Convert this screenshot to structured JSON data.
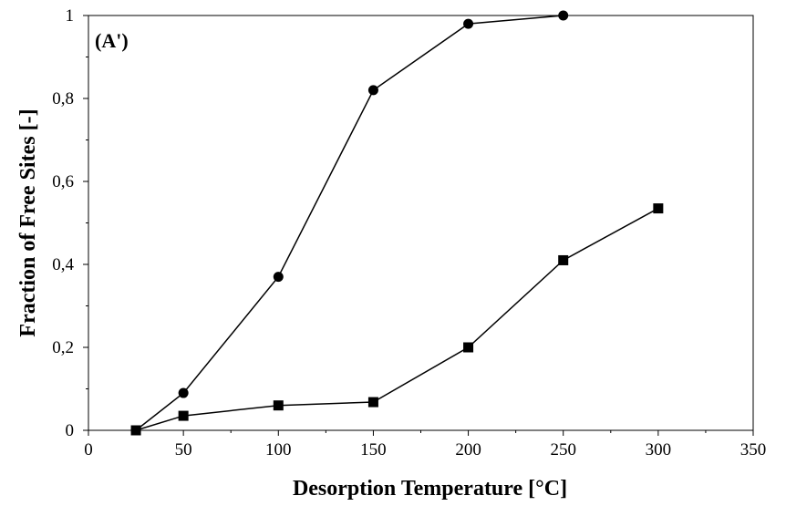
{
  "chart_data": {
    "type": "line",
    "panel_label": "(A')",
    "xlabel": "Desorption Temperature [°C]",
    "ylabel": "Fraction of Free Sites [-]",
    "xlim": [
      0,
      350
    ],
    "ylim": [
      0,
      1
    ],
    "x_ticks": [
      0,
      50,
      100,
      150,
      200,
      250,
      300,
      350
    ],
    "y_ticks": [
      0,
      0.2,
      0.4,
      0.6,
      0.8,
      1
    ],
    "x_tick_labels": [
      "0",
      "50",
      "100",
      "150",
      "200",
      "250",
      "300",
      "350"
    ],
    "y_tick_labels": [
      "0",
      "0,2",
      "0,4",
      "0,6",
      "0,8",
      "1"
    ],
    "grid": false,
    "series": [
      {
        "marker": "circle",
        "color": "#000000",
        "x": [
          25,
          50,
          100,
          150,
          200,
          250
        ],
        "y": [
          0,
          0.09,
          0.37,
          0.82,
          0.98,
          1.0
        ]
      },
      {
        "marker": "square",
        "color": "#000000",
        "x": [
          25,
          50,
          100,
          150,
          200,
          250,
          300
        ],
        "y": [
          0,
          0.035,
          0.06,
          0.068,
          0.2,
          0.41,
          0.535
        ]
      }
    ]
  }
}
